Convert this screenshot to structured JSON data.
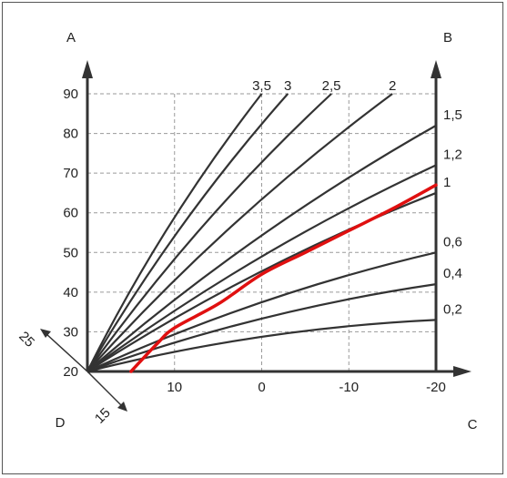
{
  "chart_data": {
    "type": "line",
    "corner_labels": {
      "top_left": "A",
      "top_right": "B",
      "bottom_left": "D",
      "bottom_right": "C"
    },
    "y_ticks": [
      "20",
      "30",
      "40",
      "50",
      "60",
      "70",
      "80",
      "90"
    ],
    "x_ticks": [
      "10",
      "0",
      "-10",
      "-20"
    ],
    "diag_labels": {
      "up": "25",
      "down": "15"
    },
    "y_range": [
      20,
      90
    ],
    "x_range": [
      20,
      -20
    ],
    "grid": true,
    "series": [
      {
        "name": "0,2",
        "points": [
          [
            20,
            20
          ],
          [
            -20,
            33
          ]
        ]
      },
      {
        "name": "0,4",
        "points": [
          [
            20,
            20
          ],
          [
            -20,
            42
          ]
        ]
      },
      {
        "name": "0,6",
        "points": [
          [
            20,
            20
          ],
          [
            -20,
            50
          ]
        ]
      },
      {
        "name": "1",
        "points": [
          [
            20,
            20
          ],
          [
            -20,
            65
          ]
        ]
      },
      {
        "name": "1,2",
        "points": [
          [
            20,
            20
          ],
          [
            -20,
            72
          ]
        ]
      },
      {
        "name": "1,5",
        "points": [
          [
            20,
            20
          ],
          [
            -20,
            82
          ]
        ]
      },
      {
        "name": "2",
        "points": [
          [
            20,
            20
          ],
          [
            -15,
            90
          ]
        ]
      },
      {
        "name": "2,5",
        "points": [
          [
            20,
            20
          ],
          [
            -8,
            90
          ]
        ]
      },
      {
        "name": "3",
        "points": [
          [
            20,
            20
          ],
          [
            -3,
            90
          ]
        ]
      },
      {
        "name": "3,5",
        "points": [
          [
            20,
            20
          ],
          [
            0,
            90
          ]
        ]
      }
    ],
    "highlight": {
      "color": "#e01010",
      "points": [
        [
          15,
          20
        ],
        [
          12,
          27
        ],
        [
          10,
          31
        ],
        [
          5,
          37
        ],
        [
          0,
          44.5
        ],
        [
          -5,
          50
        ],
        [
          -10,
          55.5
        ],
        [
          -15,
          61
        ],
        [
          -20,
          67
        ]
      ]
    }
  }
}
